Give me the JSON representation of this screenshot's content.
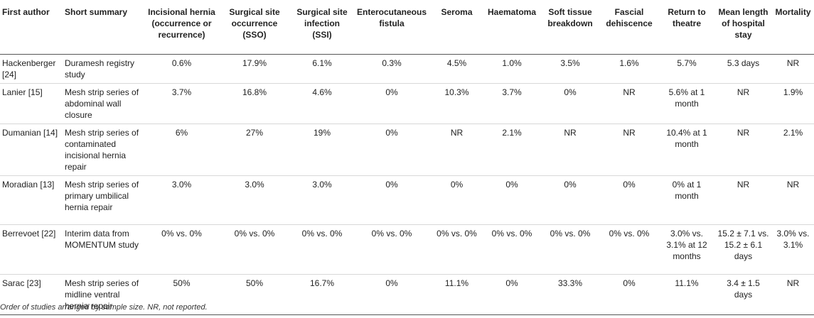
{
  "columns": [
    "First author",
    "Short summary",
    "Incisional hernia (occurrence or recurrence)",
    "Surgical site occurrence (SSO)",
    "Surgical site infection (SSI)",
    "Enterocutaneous fistula",
    "Seroma",
    "Haematoma",
    "Soft tissue breakdown",
    "Fascial dehiscence",
    "Return to theatre",
    "Mean length of hospital stay",
    "Mortality"
  ],
  "rows": [
    [
      "Hackenberger [24]",
      "Duramesh registry study",
      "0.6%",
      "17.9%",
      "6.1%",
      "0.3%",
      "4.5%",
      "1.0%",
      "3.5%",
      "1.6%",
      "5.7%",
      "5.3 days",
      "NR"
    ],
    [
      "Lanier [15]",
      "Mesh strip series of abdominal wall closure",
      "3.7%",
      "16.8%",
      "4.6%",
      "0%",
      "10.3%",
      "3.7%",
      "0%",
      "NR",
      "5.6% at 1 month",
      "NR",
      "1.9%"
    ],
    [
      "Dumanian [14]",
      "Mesh strip series of contaminated incisional hernia repair",
      "6%",
      "27%",
      "19%",
      "0%",
      "NR",
      "2.1%",
      "NR",
      "NR",
      "10.4% at 1 month",
      "NR",
      "2.1%"
    ],
    [
      "Moradian [13]",
      "Mesh strip series of primary umbilical hernia repair",
      "3.0%",
      "3.0%",
      "3.0%",
      "0%",
      "0%",
      "0%",
      "0%",
      "0%",
      "0% at 1 month",
      "NR",
      "NR"
    ],
    [
      "Berrevoet [22]",
      "Interim data from MOMENTUM study",
      "0% vs. 0%",
      "0% vs. 0%",
      "0% vs. 0%",
      "0% vs. 0%",
      "0% vs. 0%",
      "0% vs. 0%",
      "0% vs. 0%",
      "0% vs. 0%",
      "3.0% vs. 3.1% at 12 months",
      "15.2 ± 7.1 vs. 15.2 ± 6.1 days",
      "3.0% vs. 3.1%"
    ],
    [
      "Sarac [23]",
      "Mesh strip series of midline ventral hernia repair",
      "50%",
      "50%",
      "16.7%",
      "0%",
      "11.1%",
      "0%",
      "33.3%",
      "0%",
      "11.1%",
      "3.4 ± 1.5 days",
      "NR"
    ]
  ],
  "footnote": "Order of studies arranged by sample size. NR, not reported."
}
